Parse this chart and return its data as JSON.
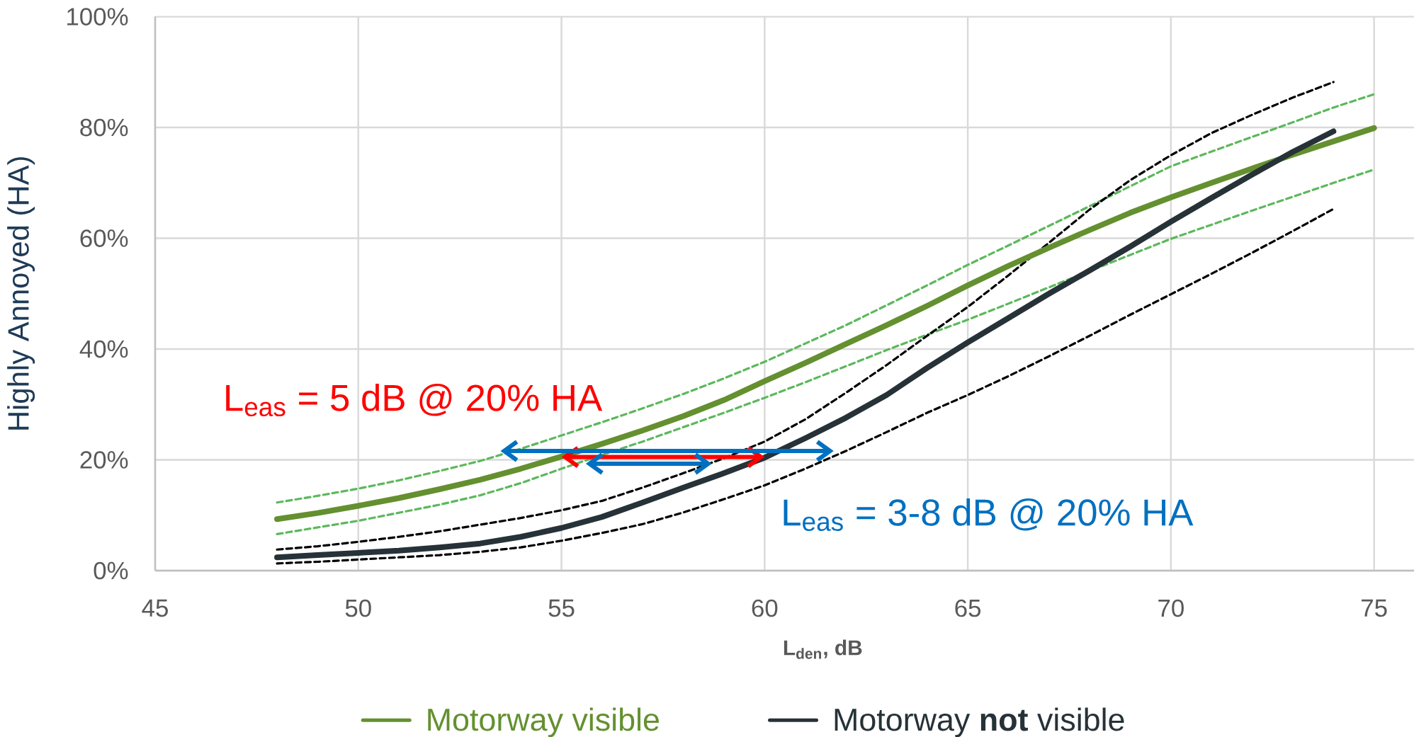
{
  "chart_data": {
    "type": "line",
    "xlabel": "L$_{den}$, dB",
    "ylabel": "Highly Annoyed (HA)",
    "xlim": [
      45,
      76
    ],
    "xticks": [
      45,
      50,
      55,
      60,
      65,
      70,
      75
    ],
    "ylim": [
      0,
      100
    ],
    "yticks": [
      {
        "value": 0,
        "label": "0%"
      },
      {
        "value": 20,
        "label": "20%"
      },
      {
        "value": 40,
        "label": "40%"
      },
      {
        "value": 60,
        "label": "60%"
      },
      {
        "value": 80,
        "label": "80%"
      },
      {
        "value": 100,
        "label": "100%"
      }
    ],
    "grid": true,
    "legend": "bottom",
    "annotations": [
      {
        "text": "L$_{eas}$ = 5 dB @ 20% HA",
        "x": 60.0,
        "y": 20.5
      },
      {
        "text": "L$_{eas}$ = 3-8 dB @ 20% HA",
        "x": 58.7,
        "y": 19.3
      }
    ],
    "series": [
      {
        "color": "#5cb85c",
        "line_style": "dashed",
        "x": [
          48,
          49,
          50,
          51,
          52,
          53,
          54,
          55,
          56,
          57,
          58,
          59,
          60,
          62,
          64,
          65,
          66,
          68,
          70,
          72,
          74,
          75
        ],
        "values": [
          12.3,
          13.5,
          14.8,
          16.3,
          18.0,
          19.8,
          22.0,
          24.4,
          26.8,
          29.3,
          31.9,
          34.7,
          37.7,
          44.3,
          51.5,
          55.2,
          58.7,
          65.8,
          73.0,
          78.3,
          83.6,
          86.0
        ]
      },
      {
        "color": "#5cb85c",
        "line_style": "dashed",
        "x": [
          48,
          50,
          52,
          53,
          54,
          55,
          56,
          57,
          58,
          59,
          60,
          61,
          62,
          63,
          64,
          65,
          66,
          68,
          70,
          72,
          74,
          75
        ],
        "values": [
          6.6,
          9.0,
          11.9,
          13.6,
          15.8,
          18.4,
          20.9,
          23.3,
          25.9,
          28.5,
          31.2,
          34.0,
          36.9,
          39.8,
          42.6,
          45.3,
          48.2,
          54.1,
          59.9,
          65.0,
          70.0,
          72.4
        ]
      },
      {
        "color": "#000000",
        "line_style": "dashed",
        "x": [
          48,
          49,
          50,
          51,
          52,
          53,
          54,
          55,
          56,
          57,
          58,
          59,
          60,
          61,
          62,
          63,
          64,
          65,
          66,
          67,
          68,
          69,
          70,
          71,
          72,
          73,
          74
        ],
        "values": [
          3.8,
          4.4,
          5.2,
          6.1,
          7.1,
          8.3,
          9.5,
          10.9,
          12.6,
          15.0,
          17.6,
          20.3,
          23.3,
          27.3,
          32.1,
          37.1,
          42.4,
          47.6,
          53.3,
          59.2,
          65.2,
          70.5,
          75.0,
          79.0,
          82.3,
          85.4,
          88.2
        ]
      },
      {
        "color": "#000000",
        "line_style": "dashed",
        "x": [
          48,
          49,
          50,
          51,
          52,
          53,
          54,
          55,
          56,
          57,
          58,
          59,
          60,
          61,
          62,
          63,
          64,
          65,
          66,
          67,
          68,
          69,
          70,
          71,
          72,
          73,
          74
        ],
        "values": [
          1.3,
          1.6,
          2.0,
          2.4,
          2.8,
          3.4,
          4.2,
          5.4,
          6.8,
          8.4,
          10.5,
          12.9,
          15.4,
          18.4,
          21.6,
          25.0,
          28.5,
          31.7,
          35.1,
          38.7,
          42.4,
          46.2,
          49.9,
          53.6,
          57.4,
          61.3,
          65.3
        ]
      },
      {
        "name": "Motorway visible",
        "color": "#649030",
        "line_style": "solid",
        "x": [
          48,
          49,
          50,
          51,
          52,
          53,
          54,
          55,
          56,
          57,
          58,
          59,
          60,
          61,
          62,
          63,
          64,
          65,
          66,
          67,
          68,
          69,
          70,
          71,
          72,
          73,
          74,
          75
        ],
        "values": [
          9.3,
          10.4,
          11.7,
          13.1,
          14.7,
          16.4,
          18.4,
          20.6,
          22.9,
          25.3,
          27.9,
          30.8,
          34.2,
          37.5,
          40.9,
          44.3,
          47.8,
          51.5,
          55.0,
          58.3,
          61.5,
          64.6,
          67.4,
          70.0,
          72.6,
          75.1,
          77.5,
          79.9
        ]
      },
      {
        "name": "Motorway **not** visible",
        "color": "#263238",
        "line_style": "solid",
        "x": [
          48,
          49,
          50,
          51,
          52,
          53,
          54,
          55,
          56,
          57,
          58,
          59,
          60,
          61,
          62,
          63,
          64,
          65,
          66,
          67,
          68,
          69,
          70,
          71,
          72,
          73,
          74
        ],
        "values": [
          2.4,
          2.8,
          3.2,
          3.6,
          4.2,
          4.9,
          6.1,
          7.7,
          9.7,
          12.3,
          15.0,
          17.6,
          20.4,
          23.9,
          27.6,
          31.7,
          36.6,
          41.2,
          45.6,
          50.0,
          54.2,
          58.5,
          63.0,
          67.3,
          71.5,
          75.6,
          79.3
        ]
      }
    ]
  }
}
